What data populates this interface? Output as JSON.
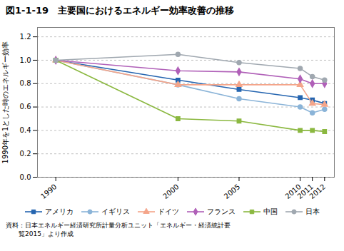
{
  "chart_data": {
    "type": "line",
    "title": "図1-1-19　主要国におけるエネルギー効率改善の推移",
    "ylabel": "1990年を1とした時のエネルギー効率",
    "source": [
      "資料：日本エネルギー経済研究所計量分析ユニット「エネルギー・経済統計要",
      "　　覧2015」より作成"
    ],
    "x": [
      1990,
      2000,
      2005,
      2010,
      2011,
      2012
    ],
    "series": [
      {
        "name": "アメリカ",
        "color": "#2565b0",
        "marker": "square",
        "values": [
          1.0,
          0.83,
          0.75,
          0.68,
          0.66,
          0.63
        ]
      },
      {
        "name": "イギリス",
        "color": "#8bb4d8",
        "marker": "circle",
        "values": [
          1.0,
          0.79,
          0.67,
          0.6,
          0.55,
          0.58
        ]
      },
      {
        "name": "ドイツ",
        "color": "#f4a58a",
        "marker": "triangle",
        "values": [
          1.0,
          0.79,
          0.79,
          0.79,
          0.63,
          0.62
        ]
      },
      {
        "name": "フランス",
        "color": "#b060b8",
        "marker": "diamond",
        "values": [
          1.0,
          0.91,
          0.9,
          0.84,
          0.8,
          0.8
        ]
      },
      {
        "name": "中国",
        "color": "#8bb840",
        "marker": "square",
        "values": [
          1.0,
          0.5,
          0.48,
          0.4,
          0.4,
          0.39
        ]
      },
      {
        "name": "日本",
        "color": "#a0a8b0",
        "marker": "circle",
        "values": [
          1.0,
          1.05,
          0.98,
          0.93,
          0.86,
          0.83
        ]
      }
    ],
    "xlim": [
      1988.5,
      2012.8
    ],
    "xticks": [
      1990,
      2000,
      2005,
      2010,
      2011,
      2012
    ],
    "ylim": [
      0,
      1.28
    ],
    "yticks": [
      {
        "value": 0,
        "label": "0.0"
      },
      0.2,
      0.4,
      0.6,
      0.8,
      {
        "value": 1.0,
        "label": "1.0"
      },
      1.2
    ],
    "grid": true,
    "legend": "bottom"
  }
}
